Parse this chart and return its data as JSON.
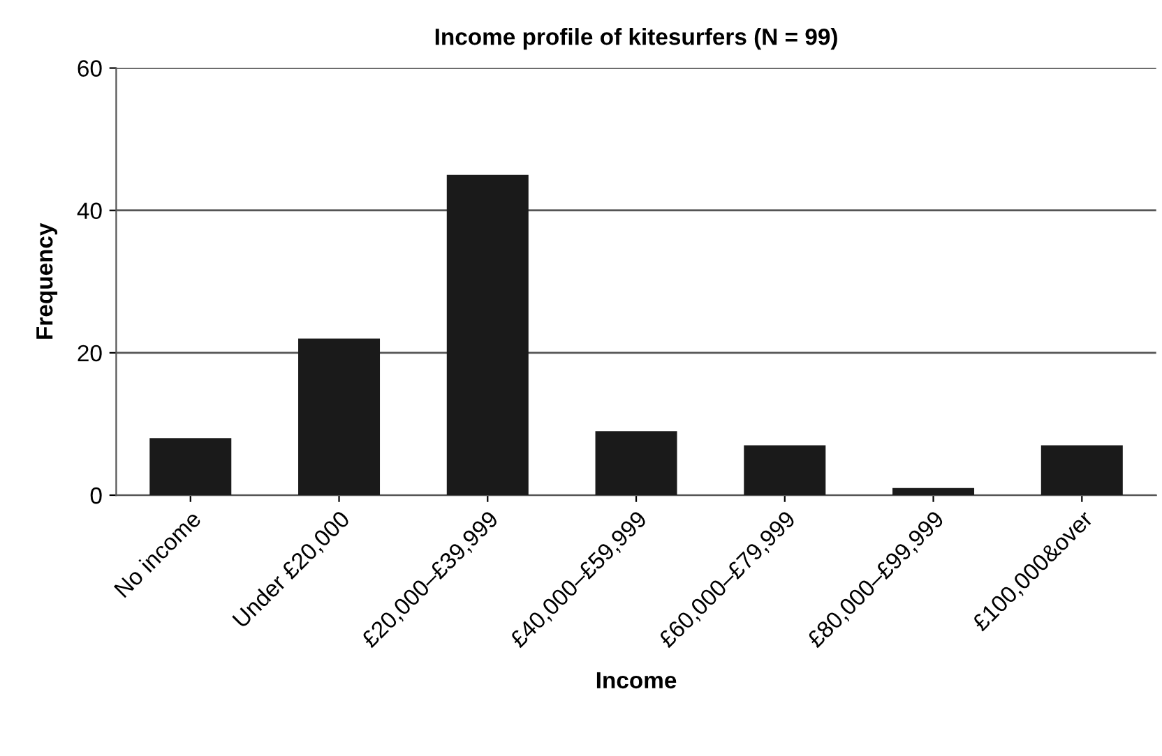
{
  "chart_data": {
    "type": "bar",
    "title": "Income profile of kitesurfers (N = 99)",
    "xlabel": "Income",
    "ylabel": "Frequency",
    "categories": [
      "No income",
      "Under £20,000",
      "£20,000–£39,999",
      "£40,000–£59,999",
      "£60,000–£79,999",
      "£80,000–£99,999",
      "£100,000&over"
    ],
    "values": [
      8,
      22,
      45,
      9,
      7,
      1,
      7
    ],
    "color": "#1a1a1a",
    "ylim": [
      0,
      60
    ],
    "yticks": [
      0,
      20,
      40,
      60
    ],
    "grid": "y"
  }
}
